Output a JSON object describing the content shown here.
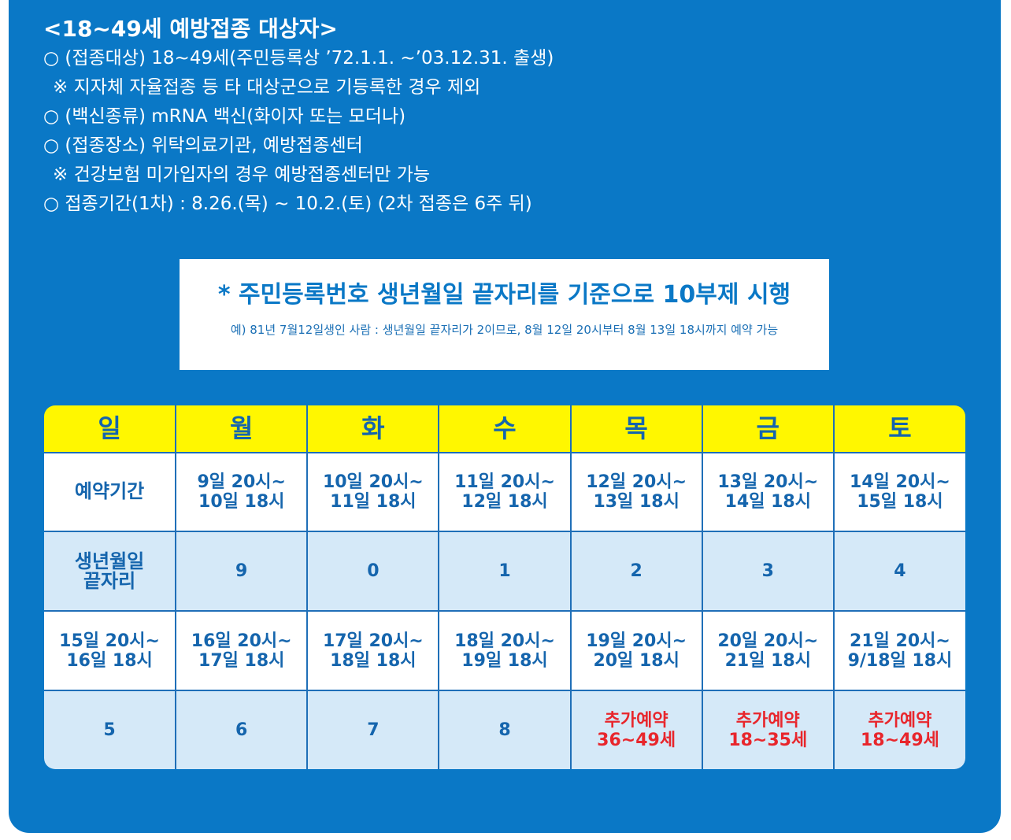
{
  "intro": {
    "title": "<18~49세 예방접종 대상자>",
    "lines": [
      "○ (접종대상) 18~49세(주민등록상 ’72.1.1. ~’03.12.31. 출생)",
      "※ 지자체 자율접종 등 타 대상군으로 기등록한 경우 제외",
      "○ (백신종류) mRNA 백신(화이자 또는 모더나)",
      "○ (접종장소) 위탁의료기관, 예방접종센터",
      "※ 건강보험 미가입자의 경우 예방접종센터만 가능",
      "○ 접종기간(1차) : 8.26.(목) ~ 10.2.(토) (2차 접종은 6주 뒤)"
    ]
  },
  "notice": {
    "headline": "* 주민등록번호 생년월일 끝자리를 기준으로 10부제 시행",
    "example": "예) 81년 7월12일생인 사람 : 생년월일 끝자리가 2이므로, 8월 12일 20시부터 8월 13일 18시까지 예약 가능"
  },
  "schedule": {
    "days": [
      "일",
      "월",
      "화",
      "수",
      "목",
      "금",
      "토"
    ],
    "row1": {
      "label": "예약기간",
      "cells": [
        [
          "9일 20시~",
          "10일 18시"
        ],
        [
          "10일 20시~",
          "11일 18시"
        ],
        [
          "11일 20시~",
          "12일 18시"
        ],
        [
          "12일 20시~",
          "13일 18시"
        ],
        [
          "13일 20시~",
          "14일 18시"
        ],
        [
          "14일 20시~",
          "15일 18시"
        ]
      ]
    },
    "row2": {
      "label": [
        "생년월일",
        "끝자리"
      ],
      "cells": [
        "9",
        "0",
        "1",
        "2",
        "3",
        "4"
      ]
    },
    "row3": {
      "cells": [
        [
          "15일 20시~",
          "16일 18시"
        ],
        [
          "16일 20시~",
          "17일 18시"
        ],
        [
          "17일 20시~",
          "18일 18시"
        ],
        [
          "18일 20시~",
          "19일 18시"
        ],
        [
          "19일 20시~",
          "20일 18시"
        ],
        [
          "20일 20시~",
          "21일 18시"
        ],
        [
          "21일 20시~",
          "9/18일 18시"
        ]
      ]
    },
    "row4": {
      "cells": [
        "5",
        "6",
        "7",
        "8"
      ],
      "extra": [
        [
          "추가예약",
          "36~49세"
        ],
        [
          "추가예약",
          "18~35세"
        ],
        [
          "추가예약",
          "18~49세"
        ]
      ]
    }
  },
  "colors": {
    "panel": "#0a78c6",
    "header_yellow": "#fff700",
    "text_blue": "#1565ad",
    "row_light_blue": "#d5e9f8",
    "accent_red": "#e8262c"
  }
}
